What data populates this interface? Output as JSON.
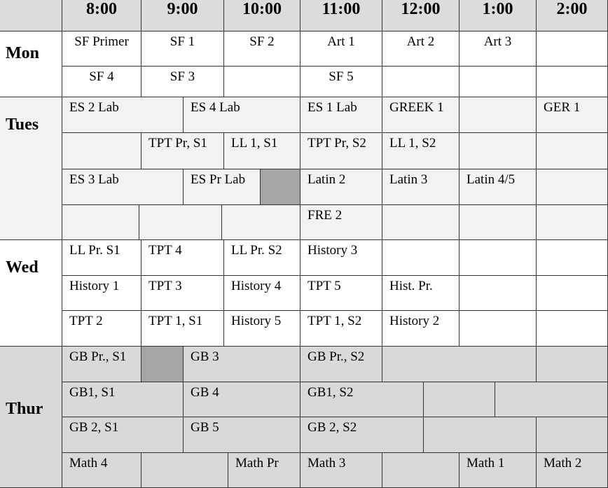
{
  "times": [
    "8:00",
    "9:00",
    "10:00",
    "11:00",
    "12:00",
    "1:00",
    "2:00"
  ],
  "days": [
    {
      "name": "Mon",
      "rows": [
        [
          "SF Primer",
          "SF 1",
          "SF 2",
          "Art 1",
          "Art 2",
          "Art 3"
        ],
        [
          "SF 4",
          "SF 3",
          "SF 5"
        ]
      ]
    },
    {
      "name": "Tues",
      "rows": [
        [
          "ES 2 Lab",
          "ES 4 Lab",
          "ES 1 Lab",
          "GREEK 1",
          "GER 1"
        ],
        [
          "TPT Pr, S1",
          "LL 1, S1",
          "TPT Pr, S2",
          "LL 1, S2"
        ],
        [
          "ES 3 Lab",
          "ES Pr Lab",
          "Latin 2",
          "Latin 3",
          "Latin 4/5"
        ],
        [
          "FRE 2"
        ]
      ]
    },
    {
      "name": "Wed",
      "rows": [
        [
          "LL Pr. S1",
          "TPT 4",
          "LL Pr. S2",
          "History 3"
        ],
        [
          "History 1",
          "TPT 3",
          "History 4",
          "TPT 5",
          "Hist. Pr."
        ],
        [
          "TPT 2",
          "TPT 1, S1",
          "History 5",
          "TPT 1, S2",
          "History 2"
        ]
      ]
    },
    {
      "name": "Thur",
      "rows": [
        [
          "GB Pr., S1",
          "GB 3",
          "GB Pr., S2"
        ],
        [
          "GB1, S1",
          "GB 4",
          "GB1, S2"
        ],
        [
          "GB 2, S1",
          "GB 5",
          "GB 2, S2"
        ],
        [
          "Math 4",
          "Math Pr",
          "Math 3",
          "Math 1",
          "Math 2"
        ]
      ]
    }
  ]
}
